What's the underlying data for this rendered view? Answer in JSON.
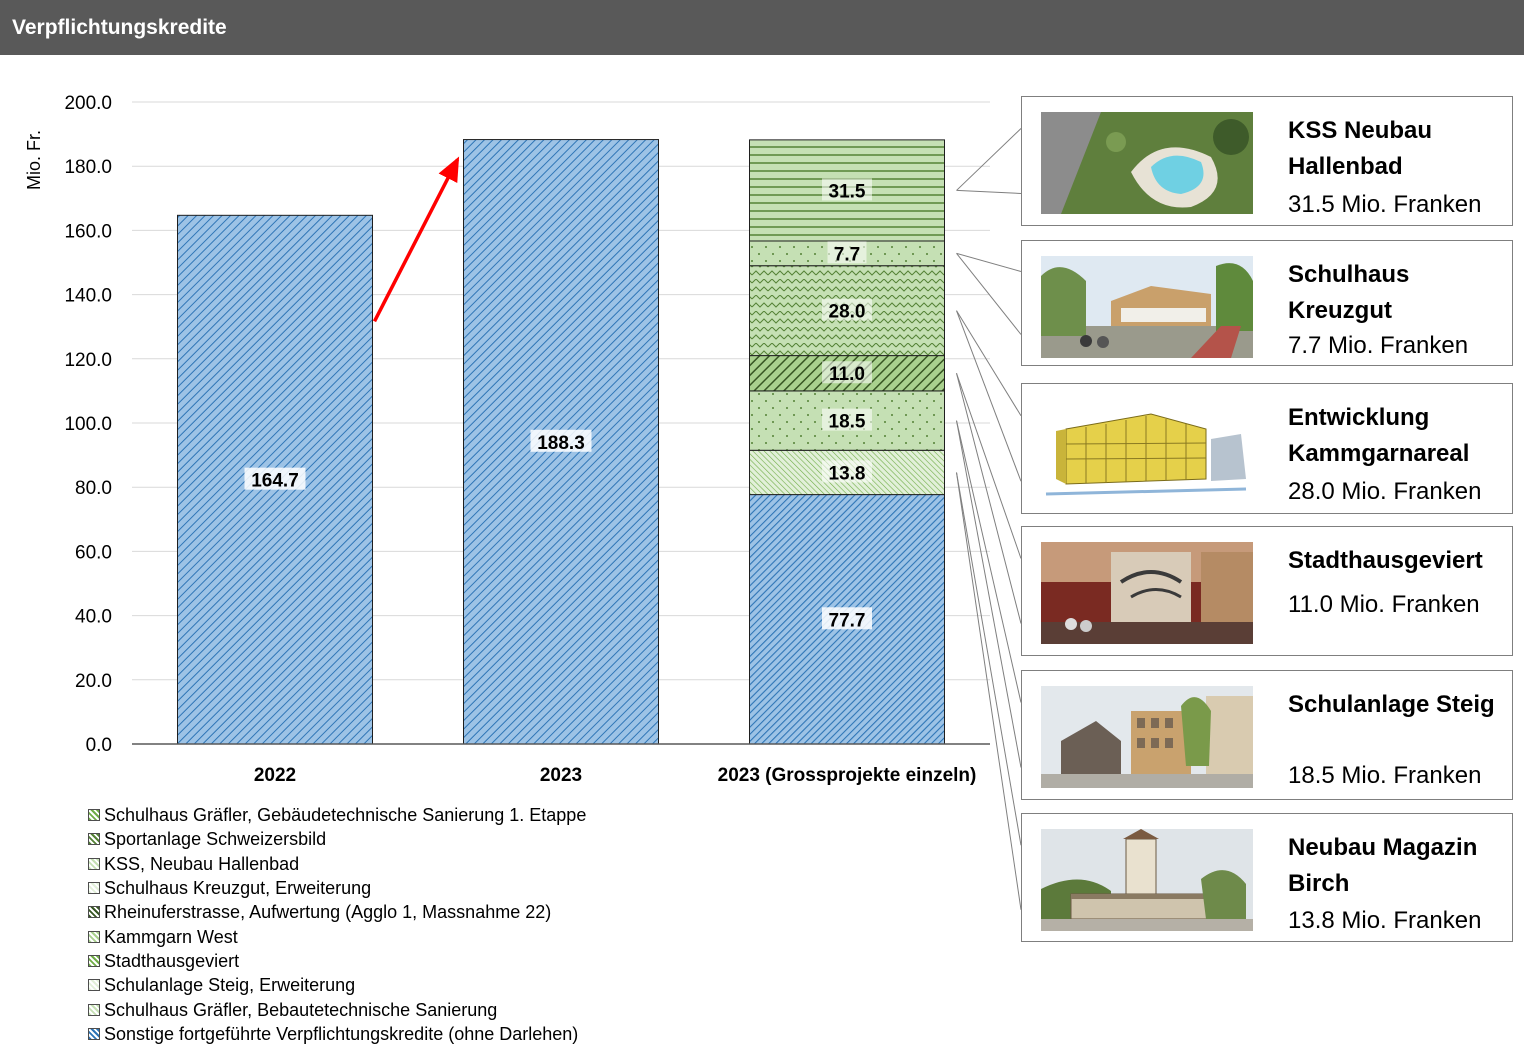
{
  "header": {
    "title": "Verpflichtungskredite"
  },
  "colors": {
    "header_bg": "#595959",
    "blue_fill": "#9dc3e6",
    "blue_line": "#2e75b6",
    "green_fill": "#c5e0b4",
    "green_line": "#548235",
    "arrow": "#ff0000"
  },
  "chart_data": {
    "type": "bar",
    "stacked": true,
    "ylabel": "Mio. Fr.",
    "ylim": [
      0,
      200
    ],
    "yticks": [
      "0.0",
      "20.0",
      "40.0",
      "60.0",
      "80.0",
      "100.0",
      "120.0",
      "140.0",
      "160.0",
      "180.0",
      "200.0"
    ],
    "grid": true,
    "categories": [
      "2022",
      "2023",
      "2023 (Grossprojekte einzeln)"
    ],
    "series": [
      {
        "name": "Sonstige fortgeführte Verpflichtungskredite (ohne Darlehen)",
        "values": [
          164.7,
          188.3,
          77.7
        ],
        "labels": [
          "164.7",
          "188.3",
          "77.7"
        ],
        "fill": "blue",
        "pattern": "diag-dense"
      },
      {
        "name": "Neubau Magazin Birch",
        "values": [
          0,
          0,
          13.8
        ],
        "labels": [
          "",
          "",
          "13.8"
        ],
        "fill": "green",
        "pattern": "diag-fine"
      },
      {
        "name": "Schulanlage Steig, Erweiterung",
        "values": [
          0,
          0,
          18.5
        ],
        "labels": [
          "",
          "",
          "18.5"
        ],
        "fill": "green",
        "pattern": "dots"
      },
      {
        "name": "Stadthausgeviert",
        "values": [
          0,
          0,
          11.0
        ],
        "labels": [
          "",
          "",
          "11.0"
        ],
        "fill": "green",
        "pattern": "diag-wide"
      },
      {
        "name": "Entwicklung Kammgarnareal",
        "values": [
          0,
          0,
          28.0
        ],
        "labels": [
          "",
          "",
          "28.0"
        ],
        "fill": "green",
        "pattern": "zigzag"
      },
      {
        "name": "Schulhaus Kreuzgut, Erweiterung",
        "values": [
          0,
          0,
          7.7
        ],
        "labels": [
          "",
          "",
          "7.7"
        ],
        "fill": "green",
        "pattern": "dots"
      },
      {
        "name": "KSS, Neubau Hallenbad",
        "values": [
          0,
          0,
          31.5
        ],
        "labels": [
          "",
          "",
          "31.5"
        ],
        "fill": "green",
        "pattern": "hlines"
      }
    ],
    "arrow": {
      "from_category": "2022",
      "to_category": "2023"
    },
    "legend_position": "bottom-left"
  },
  "legend": [
    {
      "label": "Schulhaus Gräfler, Gebäudetechnische Sanierung 1. Etappe",
      "color": "#70ad47"
    },
    {
      "label": "Sportanlage Schweizersbild",
      "color": "#548235"
    },
    {
      "label": "KSS, Neubau Hallenbad",
      "color": "#c5e0b4"
    },
    {
      "label": "Schulhaus Kreuzgut, Erweiterung",
      "color": "#e2f0d9"
    },
    {
      "label": "Rheinuferstrasse, Aufwertung  (Agglo 1, Massnahme 22)",
      "color": "#375623"
    },
    {
      "label": "Kammgarn West",
      "color": "#a9d18e"
    },
    {
      "label": "Stadthausgeviert",
      "color": "#70ad47"
    },
    {
      "label": "Schulanlage Steig, Erweiterung",
      "color": "#e2f0d9"
    },
    {
      "label": "Schulhaus Gräfler, Bebautetechnische Sanierung",
      "color": "#c5e0b4"
    },
    {
      "label": "Sonstige fortgeführte Verpflichtungskredite (ohne Darlehen)",
      "color": "#2e75b6"
    }
  ],
  "callouts": [
    {
      "title": "KSS Neubau Hallenbad",
      "amount": "31.5 Mio. Franken",
      "image": "aerial-pool-photo"
    },
    {
      "title": "Schulhaus Kreuzgut",
      "amount": "7.7 Mio. Franken",
      "image": "school-building-photo"
    },
    {
      "title": "Entwicklung Kammgarnareal",
      "amount": "28.0 Mio. Franken",
      "image": "yellow-building-sketch"
    },
    {
      "title": "Stadthausgeviert",
      "amount": "11.0 Mio. Franken",
      "image": "atrium-interior-photo"
    },
    {
      "title": "Schulanlage Steig",
      "amount": "18.5 Mio. Franken",
      "image": "school-courtyard-photo"
    },
    {
      "title": "Neubau Magazin Birch",
      "amount": "13.8 Mio. Franken",
      "image": "tower-building-photo"
    }
  ]
}
